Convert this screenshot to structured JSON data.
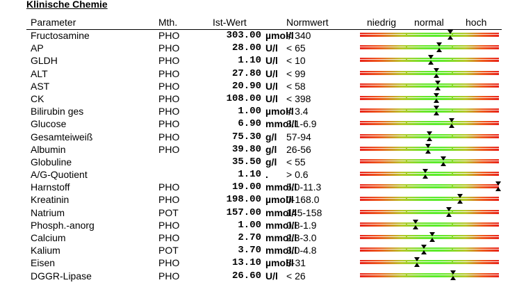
{
  "section": {
    "title": "Klinische Chemie"
  },
  "header": {
    "parameter": "Parameter",
    "method": "Mth.",
    "actual": "Ist-Wert",
    "normal_value": "Normwert",
    "low": "niedrig",
    "normal": "normal",
    "high": "hoch"
  },
  "rows": [
    {
      "parameter": "Fructosamine",
      "method": "PHO",
      "value": "303.00",
      "unit": "µmol/l",
      "range": "< 340",
      "level": 0.65
    },
    {
      "parameter": "AP",
      "method": "PHO",
      "value": "28.00",
      "unit": "U/l",
      "range": "< 65",
      "level": 0.57
    },
    {
      "parameter": "GLDH",
      "method": "PHO",
      "value": "1.10",
      "unit": "U/l",
      "range": "< 10",
      "level": 0.51
    },
    {
      "parameter": "ALT",
      "method": "PHO",
      "value": "27.80",
      "unit": "U/l",
      "range": "< 99",
      "level": 0.55
    },
    {
      "parameter": "AST",
      "method": "PHO",
      "value": "20.90",
      "unit": "U/l",
      "range": "< 58",
      "level": 0.56
    },
    {
      "parameter": "CK",
      "method": "PHO",
      "value": "108.00",
      "unit": "U/l",
      "range": "< 398",
      "level": 0.55
    },
    {
      "parameter": "Bilirubin ges",
      "method": "PHO",
      "value": "1.00",
      "unit": "µmol/l",
      "range": "< 3.4",
      "level": 0.55
    },
    {
      "parameter": "Glucose",
      "method": "PHO",
      "value": "6.90",
      "unit": "mmol/l",
      "range": "3.1-6.9",
      "level": 0.66
    },
    {
      "parameter": "Gesamteiweiß",
      "method": "PHO",
      "value": "75.30",
      "unit": "g/l",
      "range": "57-94",
      "level": 0.5
    },
    {
      "parameter": "Albumin",
      "method": "PHO",
      "value": "39.80",
      "unit": "g/l",
      "range": "26-56",
      "level": 0.49
    },
    {
      "parameter": "Globuline",
      "method": "",
      "value": "35.50",
      "unit": "g/l",
      "range": "< 55",
      "level": 0.6
    },
    {
      "parameter": "A/G-Quotient",
      "method": "",
      "value": "1.10",
      "unit": ".",
      "range": "> 0.6",
      "level": 0.47
    },
    {
      "parameter": "Harnstoff",
      "method": "PHO",
      "value": "19.00",
      "unit": "mmol/l",
      "range": "5.0-11.3",
      "level": 0.995
    },
    {
      "parameter": "Kreatinin",
      "method": "PHO",
      "value": "198.00",
      "unit": "µmol/l",
      "range": "0-168.0",
      "level": 0.72
    },
    {
      "parameter": "Natrium",
      "method": "POT",
      "value": "157.00",
      "unit": "mmol/l",
      "range": "145-158",
      "level": 0.64
    },
    {
      "parameter": "Phosph.-anorg",
      "method": "PHO",
      "value": "1.00",
      "unit": "mmol/l",
      "range": "0.8-1.9",
      "level": 0.4
    },
    {
      "parameter": "Calcium",
      "method": "PHO",
      "value": "2.70",
      "unit": "mmol/l",
      "range": "2.3-3.0",
      "level": 0.52
    },
    {
      "parameter": "Kalium",
      "method": "POT",
      "value": "3.70",
      "unit": "mmol/l",
      "range": "3.0-4.8",
      "level": 0.46
    },
    {
      "parameter": "Eisen",
      "method": "PHO",
      "value": "13.10",
      "unit": "µmol/l",
      "range": "8-31",
      "level": 0.41
    },
    {
      "parameter": "DGGR-Lipase",
      "method": "PHO",
      "value": "26.60",
      "unit": "U/l",
      "range": "< 26",
      "level": 0.67
    }
  ]
}
